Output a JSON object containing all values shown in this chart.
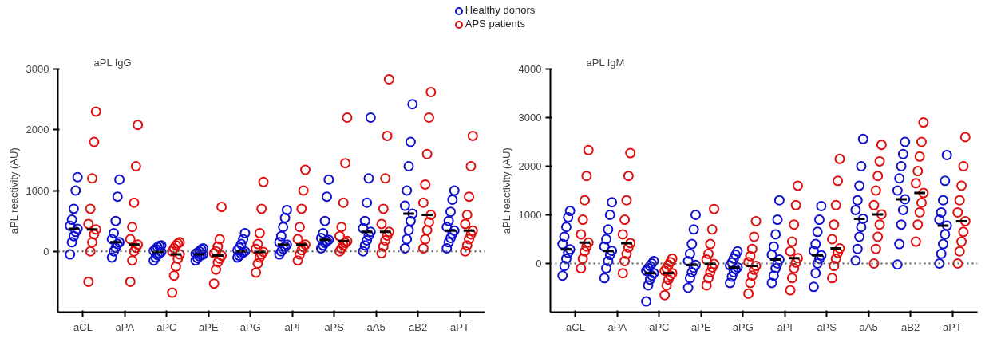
{
  "chart_data": [
    {
      "type": "scatter",
      "title": "aPL IgG",
      "ylabel": "aPL reactivity (AU)",
      "categories": [
        "aCL",
        "aPA",
        "aPC",
        "aPE",
        "aPG",
        "aPI",
        "aPS",
        "aA5",
        "aB2",
        "aPT"
      ],
      "ylim": [
        -1000,
        3000
      ],
      "yticks": [
        0,
        1000,
        2000,
        3000
      ],
      "grid": false,
      "legend": "top",
      "marker": "circle",
      "ref_lines": [
        {
          "axis": "y",
          "value": 0,
          "line_style": "dotted",
          "color": "#555555"
        }
      ],
      "series": [
        {
          "name": "Healthy donors",
          "color": "#1010d0",
          "x": [
            "aCL",
            "aCL",
            "aCL",
            "aCL",
            "aCL",
            "aCL",
            "aCL",
            "aCL",
            "aCL",
            "aCL",
            "aPA",
            "aPA",
            "aPA",
            "aPA",
            "aPA",
            "aPA",
            "aPA",
            "aPA",
            "aPA",
            "aPA",
            "aPC",
            "aPC",
            "aPC",
            "aPC",
            "aPC",
            "aPC",
            "aPC",
            "aPC",
            "aPC",
            "aPC",
            "aPE",
            "aPE",
            "aPE",
            "aPE",
            "aPE",
            "aPE",
            "aPE",
            "aPE",
            "aPE",
            "aPE",
            "aPG",
            "aPG",
            "aPG",
            "aPG",
            "aPG",
            "aPG",
            "aPG",
            "aPG",
            "aPG",
            "aPG",
            "aPI",
            "aPI",
            "aPI",
            "aPI",
            "aPI",
            "aPI",
            "aPI",
            "aPI",
            "aPI",
            "aPI",
            "aPS",
            "aPS",
            "aPS",
            "aPS",
            "aPS",
            "aPS",
            "aPS",
            "aPS",
            "aPS",
            "aPS",
            "aA5",
            "aA5",
            "aA5",
            "aA5",
            "aA5",
            "aA5",
            "aA5",
            "aA5",
            "aA5",
            "aA5",
            "aB2",
            "aB2",
            "aB2",
            "aB2",
            "aB2",
            "aB2",
            "aB2",
            "aB2",
            "aB2",
            "aB2",
            "aPT",
            "aPT",
            "aPT",
            "aPT",
            "aPT",
            "aPT",
            "aPT",
            "aPT",
            "aPT",
            "aPT"
          ],
          "values": [
            -50,
            150,
            250,
            320,
            370,
            420,
            520,
            700,
            1000,
            1220,
            -100,
            0,
            60,
            120,
            150,
            200,
            300,
            500,
            900,
            1180,
            -150,
            -100,
            -60,
            -30,
            -10,
            10,
            40,
            70,
            90,
            100,
            -150,
            -110,
            -80,
            -60,
            -50,
            -40,
            -20,
            0,
            30,
            50,
            -100,
            -70,
            -40,
            -20,
            0,
            20,
            60,
            120,
            200,
            300,
            -50,
            0,
            40,
            80,
            110,
            150,
            250,
            400,
            550,
            680,
            50,
            100,
            140,
            170,
            190,
            220,
            300,
            500,
            900,
            1180,
            0,
            100,
            180,
            260,
            320,
            380,
            500,
            800,
            1200,
            2200,
            50,
            200,
            350,
            500,
            620,
            750,
            1000,
            1400,
            1800,
            2420,
            50,
            150,
            220,
            290,
            340,
            400,
            500,
            650,
            850,
            1000
          ]
        },
        {
          "name": "APS patients",
          "color": "#e01010",
          "x": [
            "aCL",
            "aCL",
            "aCL",
            "aCL",
            "aCL",
            "aCL",
            "aCL",
            "aCL",
            "aCL",
            "aCL",
            "aPA",
            "aPA",
            "aPA",
            "aPA",
            "aPA",
            "aPA",
            "aPA",
            "aPA",
            "aPA",
            "aPA",
            "aPC",
            "aPC",
            "aPC",
            "aPC",
            "aPC",
            "aPC",
            "aPC",
            "aPC",
            "aPC",
            "aPC",
            "aPE",
            "aPE",
            "aPE",
            "aPE",
            "aPE",
            "aPE",
            "aPE",
            "aPE",
            "aPE",
            "aPE",
            "aPG",
            "aPG",
            "aPG",
            "aPG",
            "aPG",
            "aPG",
            "aPG",
            "aPG",
            "aPG",
            "aPG",
            "aPI",
            "aPI",
            "aPI",
            "aPI",
            "aPI",
            "aPI",
            "aPI",
            "aPI",
            "aPI",
            "aPI",
            "aPS",
            "aPS",
            "aPS",
            "aPS",
            "aPS",
            "aPS",
            "aPS",
            "aPS",
            "aPS",
            "aPS",
            "aA5",
            "aA5",
            "aA5",
            "aA5",
            "aA5",
            "aA5",
            "aA5",
            "aA5",
            "aA5",
            "aA5",
            "aB2",
            "aB2",
            "aB2",
            "aB2",
            "aB2",
            "aB2",
            "aB2",
            "aB2",
            "aB2",
            "aB2",
            "aPT",
            "aPT",
            "aPT",
            "aPT",
            "aPT",
            "aPT",
            "aPT",
            "aPT",
            "aPT",
            "aPT"
          ],
          "values": [
            -500,
            0,
            150,
            280,
            360,
            450,
            700,
            1200,
            1800,
            2300,
            -500,
            -150,
            0,
            60,
            110,
            200,
            400,
            800,
            1400,
            2080,
            -680,
            -400,
            -250,
            -120,
            -50,
            0,
            50,
            100,
            130,
            150,
            -530,
            -300,
            -180,
            -120,
            -70,
            -30,
            0,
            80,
            200,
            730,
            -350,
            -200,
            -100,
            -50,
            -10,
            40,
            120,
            300,
            700,
            1140,
            -150,
            -50,
            20,
            70,
            110,
            200,
            400,
            700,
            1000,
            1340,
            0,
            50,
            100,
            140,
            170,
            250,
            400,
            800,
            1450,
            2200,
            -30,
            80,
            180,
            260,
            320,
            450,
            700,
            1200,
            1900,
            2830,
            50,
            200,
            350,
            480,
            600,
            800,
            1100,
            1600,
            2200,
            2620,
            0,
            100,
            200,
            280,
            340,
            450,
            600,
            900,
            1400,
            1900
          ]
        },
        {
          "type": "box",
          "color": "#000000",
          "boxes": [
            {
              "low": 370,
              "q1": 370,
              "median": 370,
              "q3": 370,
              "high": 370
            },
            {
              "low": 150,
              "q1": 150,
              "median": 150,
              "q3": 150,
              "high": 150
            },
            {
              "low": -10,
              "q1": -10,
              "median": -10,
              "q3": -10,
              "high": -10
            },
            {
              "low": -50,
              "q1": -50,
              "median": -50,
              "q3": -50,
              "high": -50
            },
            {
              "low": 0,
              "q1": 0,
              "median": 0,
              "q3": 0,
              "high": 0
            },
            {
              "low": 110,
              "q1": 110,
              "median": 110,
              "q3": 110,
              "high": 110
            },
            {
              "low": 190,
              "q1": 190,
              "median": 190,
              "q3": 190,
              "high": 190
            },
            {
              "low": 320,
              "q1": 320,
              "median": 320,
              "q3": 320,
              "high": 320
            },
            {
              "low": 620,
              "q1": 620,
              "median": 620,
              "q3": 620,
              "high": 620
            },
            {
              "low": 340,
              "q1": 340,
              "median": 340,
              "q3": 340,
              "high": 340
            }
          ]
        },
        {
          "type": "box",
          "color": "#000000",
          "boxes": [
            {
              "low": 360,
              "q1": 360,
              "median": 360,
              "q3": 360,
              "high": 360
            },
            {
              "low": 110,
              "q1": 110,
              "median": 110,
              "q3": 110,
              "high": 110
            },
            {
              "low": -50,
              "q1": -50,
              "median": -50,
              "q3": -50,
              "high": -50
            },
            {
              "low": -70,
              "q1": -70,
              "median": -70,
              "q3": -70,
              "high": -70
            },
            {
              "low": -10,
              "q1": -10,
              "median": -10,
              "q3": -10,
              "high": -10
            },
            {
              "low": 110,
              "q1": 110,
              "median": 110,
              "q3": 110,
              "high": 110
            },
            {
              "low": 170,
              "q1": 170,
              "median": 170,
              "q3": 170,
              "high": 170
            },
            {
              "low": 320,
              "q1": 320,
              "median": 320,
              "q3": 320,
              "high": 320
            },
            {
              "low": 600,
              "q1": 600,
              "median": 600,
              "q3": 600,
              "high": 600
            },
            {
              "low": 340,
              "q1": 340,
              "median": 340,
              "q3": 340,
              "high": 340
            }
          ]
        }
      ]
    },
    {
      "type": "scatter",
      "title": "aPL IgM",
      "ylabel": "aPL reactivity (AU)",
      "categories": [
        "aCL",
        "aPA",
        "aPC",
        "aPE",
        "aPG",
        "aPI",
        "aPS",
        "aA5",
        "aB2",
        "aPT"
      ],
      "ylim": [
        -1000,
        4000
      ],
      "yticks": [
        0,
        1000,
        2000,
        3000,
        4000
      ],
      "grid": false,
      "marker": "circle",
      "ref_lines": [
        {
          "axis": "y",
          "value": 0,
          "line_style": "dotted",
          "color": "#555555"
        }
      ],
      "series": [
        {
          "color": "#1010d0",
          "x": [
            "aCL",
            "aCL",
            "aCL",
            "aCL",
            "aCL",
            "aCL",
            "aCL",
            "aCL",
            "aCL",
            "aCL",
            "aPA",
            "aPA",
            "aPA",
            "aPA",
            "aPA",
            "aPA",
            "aPA",
            "aPA",
            "aPA",
            "aPA",
            "aPC",
            "aPC",
            "aPC",
            "aPC",
            "aPC",
            "aPC",
            "aPC",
            "aPC",
            "aPC",
            "aPC",
            "aPE",
            "aPE",
            "aPE",
            "aPE",
            "aPE",
            "aPE",
            "aPE",
            "aPE",
            "aPE",
            "aPE",
            "aPG",
            "aPG",
            "aPG",
            "aPG",
            "aPG",
            "aPG",
            "aPG",
            "aPG",
            "aPG",
            "aPG",
            "aPI",
            "aPI",
            "aPI",
            "aPI",
            "aPI",
            "aPI",
            "aPI",
            "aPI",
            "aPI",
            "aPI",
            "aPS",
            "aPS",
            "aPS",
            "aPS",
            "aPS",
            "aPS",
            "aPS",
            "aPS",
            "aPS",
            "aPS",
            "aA5",
            "aA5",
            "aA5",
            "aA5",
            "aA5",
            "aA5",
            "aA5",
            "aA5",
            "aA5",
            "aA5",
            "aB2",
            "aB2",
            "aB2",
            "aB2",
            "aB2",
            "aB2",
            "aB2",
            "aB2",
            "aB2",
            "aB2",
            "aPT",
            "aPT",
            "aPT",
            "aPT",
            "aPT",
            "aPT",
            "aPT",
            "aPT",
            "aPT",
            "aPT"
          ],
          "values": [
            -250,
            -50,
            100,
            220,
            290,
            400,
            550,
            750,
            950,
            1080,
            -300,
            -100,
            50,
            180,
            260,
            350,
            500,
            700,
            1000,
            1260,
            -780,
            -450,
            -330,
            -250,
            -200,
            -150,
            -100,
            -50,
            0,
            50,
            -500,
            -300,
            -180,
            -90,
            -30,
            50,
            200,
            400,
            700,
            1000,
            -400,
            -270,
            -180,
            -120,
            -80,
            -40,
            20,
            100,
            180,
            250,
            -400,
            -250,
            -100,
            0,
            80,
            180,
            350,
            600,
            900,
            1300,
            -480,
            -200,
            0,
            100,
            170,
            260,
            400,
            650,
            900,
            1180,
            60,
            300,
            550,
            750,
            920,
            1100,
            1300,
            1600,
            2000,
            2560,
            -20,
            400,
            800,
            1100,
            1320,
            1500,
            1750,
            2000,
            2250,
            2500,
            0,
            200,
            400,
            600,
            780,
            900,
            1050,
            1300,
            1700,
            2230
          ]
        },
        {
          "color": "#e01010",
          "x": [
            "aCL",
            "aCL",
            "aCL",
            "aCL",
            "aCL",
            "aCL",
            "aCL",
            "aCL",
            "aCL",
            "aCL",
            "aPA",
            "aPA",
            "aPA",
            "aPA",
            "aPA",
            "aPA",
            "aPA",
            "aPA",
            "aPA",
            "aPA",
            "aPC",
            "aPC",
            "aPC",
            "aPC",
            "aPC",
            "aPC",
            "aPC",
            "aPC",
            "aPC",
            "aPC",
            "aPE",
            "aPE",
            "aPE",
            "aPE",
            "aPE",
            "aPE",
            "aPE",
            "aPE",
            "aPE",
            "aPE",
            "aPG",
            "aPG",
            "aPG",
            "aPG",
            "aPG",
            "aPG",
            "aPG",
            "aPG",
            "aPG",
            "aPG",
            "aPI",
            "aPI",
            "aPI",
            "aPI",
            "aPI",
            "aPI",
            "aPI",
            "aPI",
            "aPI",
            "aPI",
            "aPS",
            "aPS",
            "aPS",
            "aPS",
            "aPS",
            "aPS",
            "aPS",
            "aPS",
            "aPS",
            "aPS",
            "aA5",
            "aA5",
            "aA5",
            "aA5",
            "aA5",
            "aA5",
            "aA5",
            "aA5",
            "aA5",
            "aA5",
            "aB2",
            "aB2",
            "aB2",
            "aB2",
            "aB2",
            "aB2",
            "aB2",
            "aB2",
            "aB2",
            "aB2",
            "aPT",
            "aPT",
            "aPT",
            "aPT",
            "aPT",
            "aPT",
            "aPT",
            "aPT",
            "aPT",
            "aPT"
          ],
          "values": [
            -100,
            100,
            250,
            350,
            430,
            600,
            900,
            1300,
            1800,
            2330,
            -200,
            50,
            200,
            330,
            420,
            600,
            900,
            1300,
            1800,
            2270,
            -650,
            -450,
            -330,
            -250,
            -200,
            -150,
            -100,
            -30,
            30,
            100,
            -450,
            -300,
            -180,
            -80,
            -10,
            80,
            200,
            400,
            700,
            1120,
            -620,
            -400,
            -250,
            -130,
            -50,
            30,
            150,
            300,
            550,
            870,
            -550,
            -300,
            -100,
            20,
            110,
            250,
            450,
            800,
            1200,
            1600,
            -300,
            -50,
            100,
            220,
            310,
            500,
            800,
            1200,
            1700,
            2150,
            0,
            300,
            550,
            800,
            1010,
            1200,
            1500,
            1800,
            2100,
            2440,
            450,
            800,
            1050,
            1250,
            1450,
            1650,
            1900,
            2200,
            2500,
            2900,
            0,
            250,
            450,
            650,
            870,
            1050,
            1300,
            1600,
            2000,
            2600
          ]
        },
        {
          "type": "box",
          "color": "#000000",
          "boxes": [
            {
              "low": 290,
              "q1": 290,
              "median": 290,
              "q3": 290,
              "high": 290
            },
            {
              "low": 260,
              "q1": 260,
              "median": 260,
              "q3": 260,
              "high": 260
            },
            {
              "low": -200,
              "q1": -200,
              "median": -200,
              "q3": -200,
              "high": -200
            },
            {
              "low": -30,
              "q1": -30,
              "median": -30,
              "q3": -30,
              "high": -30
            },
            {
              "low": -80,
              "q1": -80,
              "median": -80,
              "q3": -80,
              "high": -80
            },
            {
              "low": 80,
              "q1": 80,
              "median": 80,
              "q3": 80,
              "high": 80
            },
            {
              "low": 170,
              "q1": 170,
              "median": 170,
              "q3": 170,
              "high": 170
            },
            {
              "low": 920,
              "q1": 920,
              "median": 920,
              "q3": 920,
              "high": 920
            },
            {
              "low": 1320,
              "q1": 1320,
              "median": 1320,
              "q3": 1320,
              "high": 1320
            },
            {
              "low": 780,
              "q1": 780,
              "median": 780,
              "q3": 780,
              "high": 780
            }
          ]
        },
        {
          "type": "box",
          "color": "#000000",
          "boxes": [
            {
              "low": 430,
              "q1": 430,
              "median": 430,
              "q3": 430,
              "high": 430
            },
            {
              "low": 420,
              "q1": 420,
              "median": 420,
              "q3": 420,
              "high": 420
            },
            {
              "low": -200,
              "q1": -200,
              "median": -200,
              "q3": -200,
              "high": -200
            },
            {
              "low": -10,
              "q1": -10,
              "median": -10,
              "q3": -10,
              "high": -10
            },
            {
              "low": -50,
              "q1": -50,
              "median": -50,
              "q3": -50,
              "high": -50
            },
            {
              "low": 110,
              "q1": 110,
              "median": 110,
              "q3": 110,
              "high": 110
            },
            {
              "low": 310,
              "q1": 310,
              "median": 310,
              "q3": 310,
              "high": 310
            },
            {
              "low": 1010,
              "q1": 1010,
              "median": 1010,
              "q3": 1010,
              "high": 1010
            },
            {
              "low": 1450,
              "q1": 1450,
              "median": 1450,
              "q3": 1450,
              "high": 1450
            },
            {
              "low": 870,
              "q1": 870,
              "median": 870,
              "q3": 870,
              "high": 870
            }
          ]
        }
      ]
    }
  ]
}
